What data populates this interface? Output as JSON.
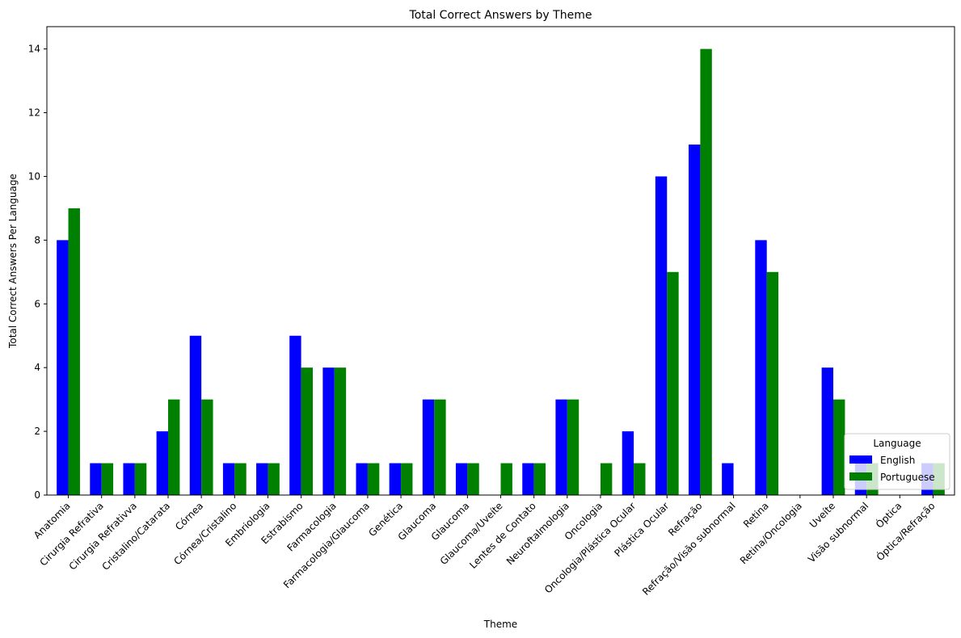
{
  "chart_data": {
    "type": "bar",
    "title": "Total Correct Answers by Theme",
    "xlabel": "Theme",
    "ylabel": "Total Correct Answers Per Language",
    "ylim": [
      0,
      14.7
    ],
    "yticks": [
      0,
      2,
      4,
      6,
      8,
      10,
      12,
      14
    ],
    "grid": false,
    "legend": {
      "title": "Language",
      "placement": "lower-right"
    },
    "categories": [
      "Anatomia",
      "Cirurgia Refrativa",
      "Cirurgia Refrativva",
      "Cristalino/Catarata",
      "Córnea",
      "Córnea/Cristalino",
      "Embriologia",
      "Estrabismo",
      "Farmacologia",
      "Farmacologia/Glaucoma",
      "Genética",
      "Glaucoma",
      "Glaucoma ",
      "Glaucoma/Uveíte",
      "Lentes de Contato",
      "Neuroftalmologia",
      "Oncologia",
      "Oncologia/Plástica Ocular",
      "Plástica Ocular",
      "Refração",
      "Refração/Visão subnormal",
      "Retina",
      "Retina/Oncologia",
      "Uveíte",
      "Visão subnormal",
      "Óptica",
      "Óptica/Refração"
    ],
    "series": [
      {
        "name": "English",
        "color": "#0000ff",
        "values": [
          8,
          1,
          1,
          2,
          5,
          1,
          1,
          5,
          4,
          1,
          1,
          3,
          1,
          0,
          1,
          3,
          0,
          2,
          10,
          11,
          1,
          8,
          0,
          4,
          1,
          0,
          1
        ]
      },
      {
        "name": "Portuguese",
        "color": "#008000",
        "values": [
          9,
          1,
          1,
          3,
          3,
          1,
          1,
          4,
          4,
          1,
          1,
          3,
          1,
          1,
          1,
          3,
          1,
          1,
          7,
          14,
          0,
          7,
          0,
          3,
          1,
          0,
          1
        ]
      }
    ]
  }
}
